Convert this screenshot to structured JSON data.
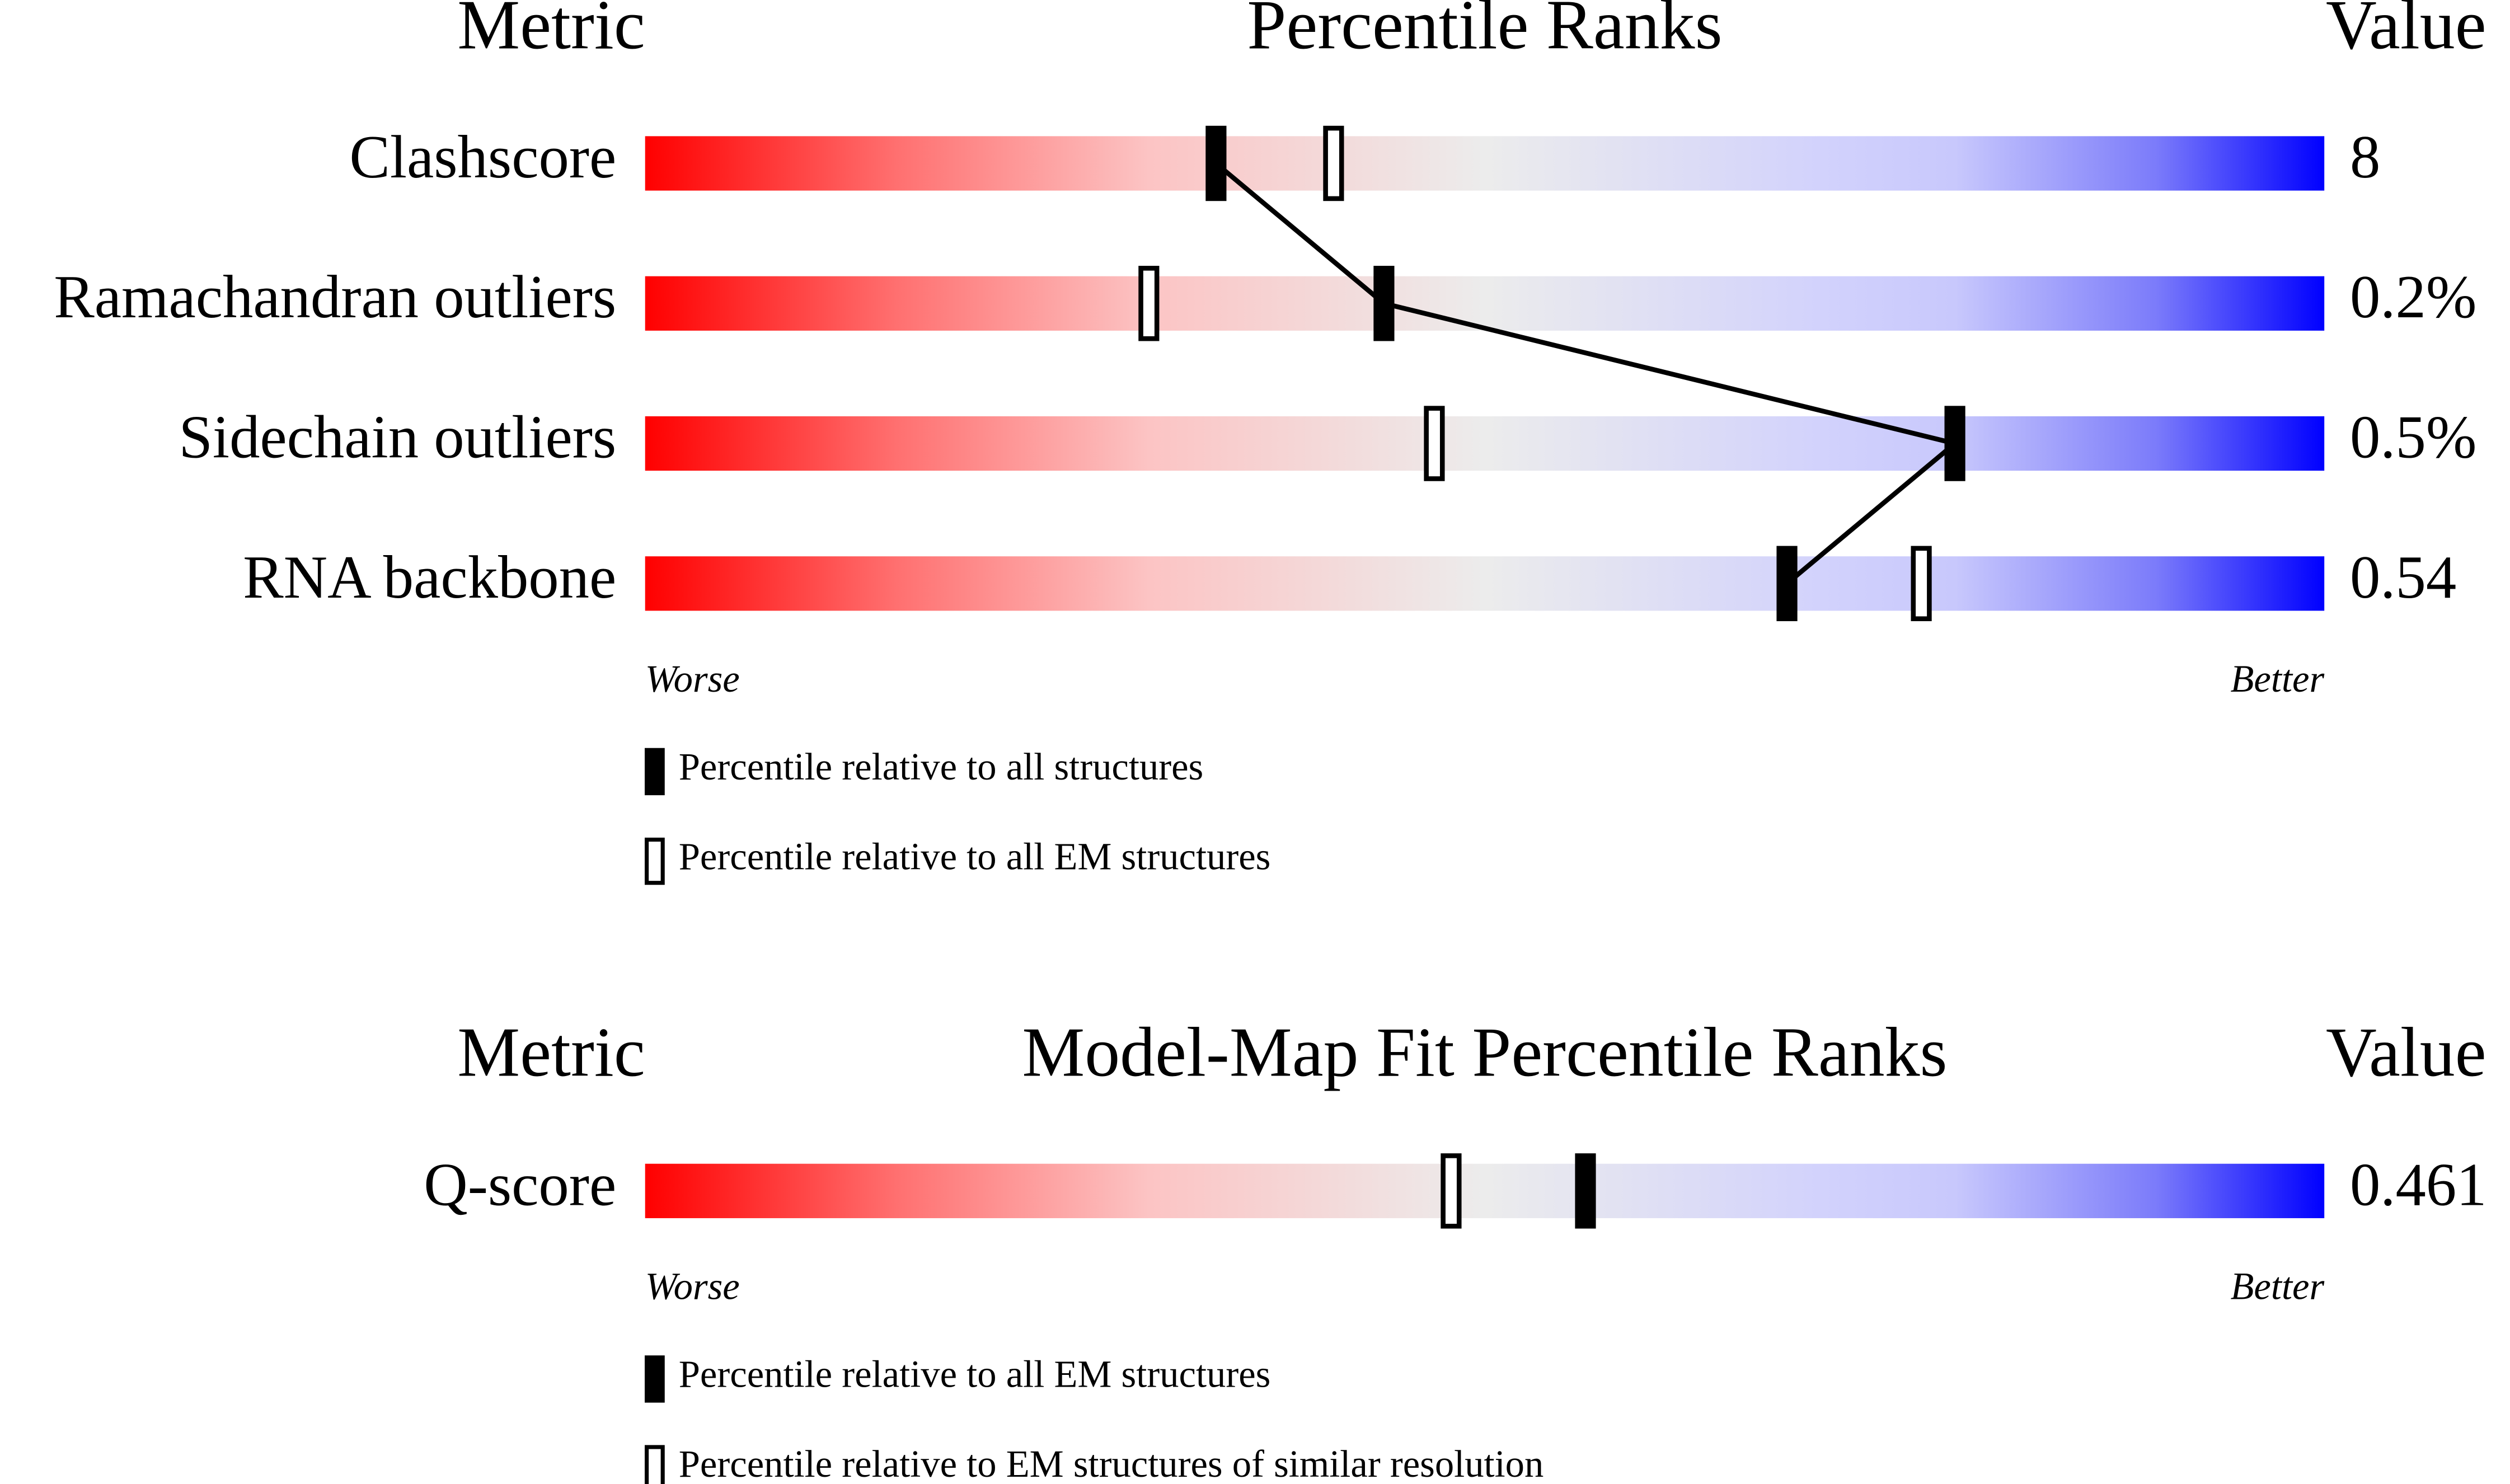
{
  "chart_data": [
    {
      "type": "slider",
      "metric_header": "Metric",
      "title": "Percentile Ranks",
      "value_header": "Value",
      "categories": [
        "Clashscore",
        "Ramachandran outliers",
        "Sidechain outliers",
        "RNA backbone"
      ],
      "metric_values": [
        "8",
        "0.2%",
        "0.5%",
        "0.54"
      ],
      "xlim": [
        0,
        100
      ],
      "worse_label": "Worse",
      "better_label": "Better",
      "series": [
        {
          "name": "Percentile relative to all structures",
          "color": "#000000",
          "values": [
            34,
            44,
            78,
            68
          ]
        },
        {
          "name": "Percentile relative to all EM structures",
          "color": "#ffffff",
          "values": [
            41,
            30,
            47,
            76
          ]
        }
      ]
    },
    {
      "type": "slider",
      "metric_header": "Metric",
      "title": "Model-Map Fit Percentile Ranks",
      "value_header": "Value",
      "categories": [
        "Q-score"
      ],
      "metric_values": [
        "0.461"
      ],
      "xlim": [
        0,
        100
      ],
      "worse_label": "Worse",
      "better_label": "Better",
      "series": [
        {
          "name": "Percentile relative to all EM structures",
          "color": "#000000",
          "values": [
            56
          ]
        },
        {
          "name": "Percentile relative to EM structures of similar resolution",
          "color": "#ffffff",
          "values": [
            48
          ]
        }
      ]
    }
  ]
}
